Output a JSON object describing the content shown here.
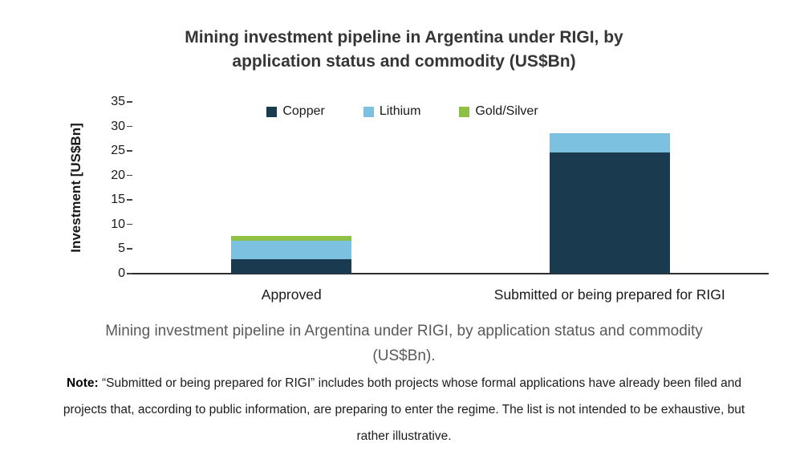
{
  "title": "Mining investment pipeline in Argentina under RIGI, by application status and commodity (US$Bn)",
  "caption": "Mining investment pipeline in Argentina under RIGI, by application status and commodity (US$Bn).",
  "note": {
    "label": "Note:",
    "text": "“Submitted or being prepared for RIGI” includes both projects whose formal applications have already been filed and projects that, according to public information, are preparing to enter the regime. The list is not intended to be exhaustive, but rather illustrative."
  },
  "chart_data": {
    "type": "bar",
    "stacked": true,
    "title": "Mining investment pipeline in Argentina under RIGI, by application status and commodity (US$Bn)",
    "categories": [
      "Approved",
      "Submitted or being prepared for RIGI"
    ],
    "series": [
      {
        "name": "Copper",
        "color": "#1a3a4f",
        "values": [
          3.0,
          24.7
        ]
      },
      {
        "name": "Lithium",
        "color": "#7cc2e0",
        "values": [
          3.7,
          4.0
        ]
      },
      {
        "name": "Gold/Silver",
        "color": "#8dc044",
        "values": [
          1.0,
          0
        ]
      }
    ],
    "xlabel": "",
    "ylabel": "Investment [US$Bn]",
    "ylim": [
      0,
      35
    ],
    "yticks": [
      0,
      5,
      10,
      15,
      20,
      25,
      30,
      35
    ],
    "legend_position": "top-center",
    "grid": false
  },
  "colors": {
    "title": "#363636",
    "caption": "#595959",
    "note": "#1c1c1c",
    "axis": "#1a1a1a",
    "copper": "#1a3a4f",
    "lithium": "#7cc2e0",
    "gold_silver": "#8dc044"
  }
}
